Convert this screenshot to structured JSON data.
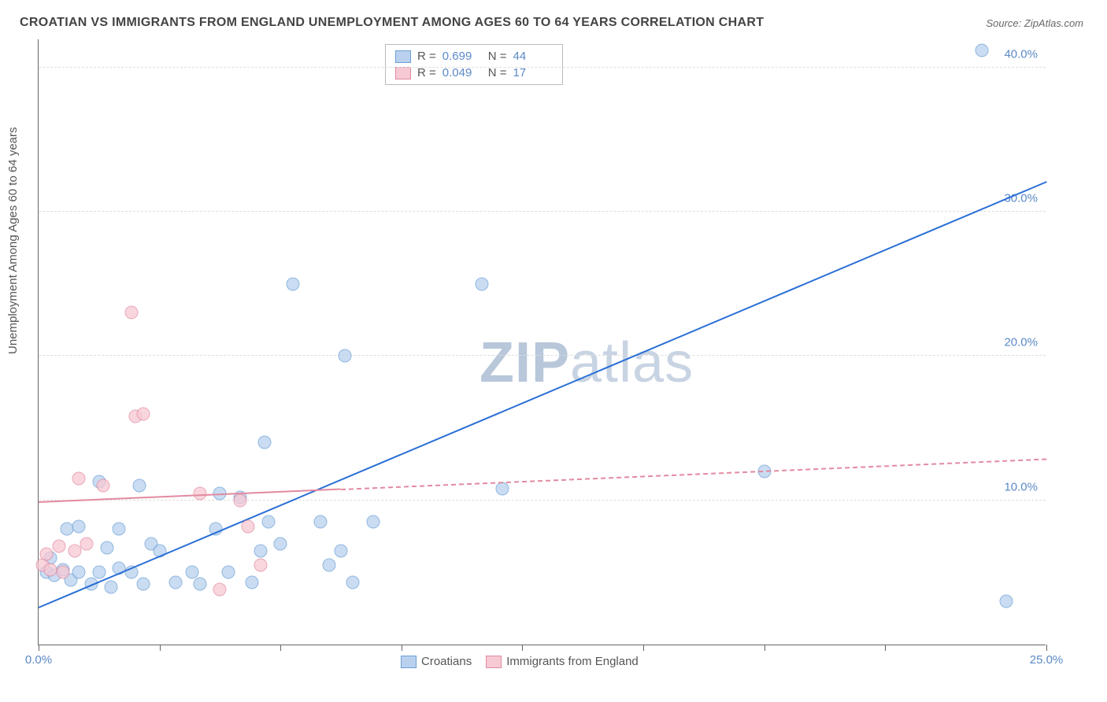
{
  "title": "CROATIAN VS IMMIGRANTS FROM ENGLAND UNEMPLOYMENT AMONG AGES 60 TO 64 YEARS CORRELATION CHART",
  "source": "Source: ZipAtlas.com",
  "y_axis_label": "Unemployment Among Ages 60 to 64 years",
  "watermark_bold": "ZIP",
  "watermark_light": "atlas",
  "chart": {
    "type": "scatter",
    "background_color": "#ffffff",
    "grid_color": "#dddddd",
    "axis_color": "#666666",
    "tick_label_color": "#5b8ac7",
    "tick_fontsize": 15,
    "title_fontsize": 16,
    "xlim": [
      0,
      25
    ],
    "ylim": [
      0,
      42
    ],
    "x_ticks": [
      0,
      3,
      6,
      9,
      12,
      15,
      18,
      21,
      25
    ],
    "x_tick_labels": {
      "0": "0.0%",
      "25": "25.0%"
    },
    "y_grid": [
      10,
      20,
      30,
      40
    ],
    "y_tick_labels": {
      "10": "10.0%",
      "20": "20.0%",
      "30": "30.0%",
      "40": "40.0%"
    },
    "series": [
      {
        "name": "Croatians",
        "fill": "#b9d1ee",
        "stroke": "#6b9fd6",
        "marker_size": 17,
        "marker_opacity": 0.75,
        "trend": {
          "x1": 0,
          "y1": 2.5,
          "x2": 25,
          "y2": 32,
          "color": "#2a6fd6",
          "width": 2.5,
          "dash": false
        },
        "R": "0.699",
        "N": "44",
        "data": [
          [
            0.2,
            5.0
          ],
          [
            0.3,
            6.0
          ],
          [
            0.4,
            4.8
          ],
          [
            0.6,
            5.2
          ],
          [
            0.7,
            8.0
          ],
          [
            0.8,
            4.5
          ],
          [
            1.0,
            5.0
          ],
          [
            1.0,
            8.2
          ],
          [
            1.3,
            4.2
          ],
          [
            1.5,
            5.0
          ],
          [
            1.5,
            11.3
          ],
          [
            1.7,
            6.7
          ],
          [
            1.8,
            4.0
          ],
          [
            2.0,
            8.0
          ],
          [
            2.0,
            5.3
          ],
          [
            2.3,
            5.0
          ],
          [
            2.5,
            11.0
          ],
          [
            2.6,
            4.2
          ],
          [
            2.8,
            7.0
          ],
          [
            3.0,
            6.5
          ],
          [
            3.4,
            4.3
          ],
          [
            3.8,
            5.0
          ],
          [
            4.0,
            4.2
          ],
          [
            4.4,
            8.0
          ],
          [
            4.5,
            10.5
          ],
          [
            4.7,
            5.0
          ],
          [
            5.0,
            10.2
          ],
          [
            5.3,
            4.3
          ],
          [
            5.5,
            6.5
          ],
          [
            5.6,
            14.0
          ],
          [
            5.7,
            8.5
          ],
          [
            6.0,
            7.0
          ],
          [
            6.3,
            25.0
          ],
          [
            7.0,
            8.5
          ],
          [
            7.2,
            5.5
          ],
          [
            7.5,
            6.5
          ],
          [
            7.6,
            20.0
          ],
          [
            7.8,
            4.3
          ],
          [
            8.3,
            8.5
          ],
          [
            11.0,
            25.0
          ],
          [
            11.5,
            10.8
          ],
          [
            18.0,
            12.0
          ],
          [
            23.4,
            41.2
          ],
          [
            24.0,
            3.0
          ]
        ]
      },
      {
        "name": "Immigrants from England",
        "fill": "#f7c9d4",
        "stroke": "#e28aa0",
        "marker_size": 17,
        "marker_opacity": 0.75,
        "trend": {
          "x1": 0,
          "y1": 9.8,
          "x2": 25,
          "y2": 12.8,
          "color": "#e28aa0",
          "width": 2,
          "dash": true,
          "solid_until": 7.5
        },
        "R": "0.049",
        "N": "17",
        "data": [
          [
            0.1,
            5.5
          ],
          [
            0.2,
            6.3
          ],
          [
            0.3,
            5.2
          ],
          [
            0.5,
            6.8
          ],
          [
            0.6,
            5.0
          ],
          [
            0.9,
            6.5
          ],
          [
            1.0,
            11.5
          ],
          [
            1.2,
            7.0
          ],
          [
            1.6,
            11.0
          ],
          [
            2.3,
            23.0
          ],
          [
            2.4,
            15.8
          ],
          [
            2.6,
            16.0
          ],
          [
            4.0,
            10.5
          ],
          [
            4.5,
            3.8
          ],
          [
            5.0,
            10.0
          ],
          [
            5.2,
            8.2
          ],
          [
            5.5,
            5.5
          ]
        ]
      }
    ]
  },
  "legend_top": {
    "r_label": "R  =",
    "n_label": "N  ="
  },
  "legend_bottom": {
    "items": [
      "Croatians",
      "Immigrants from England"
    ]
  }
}
